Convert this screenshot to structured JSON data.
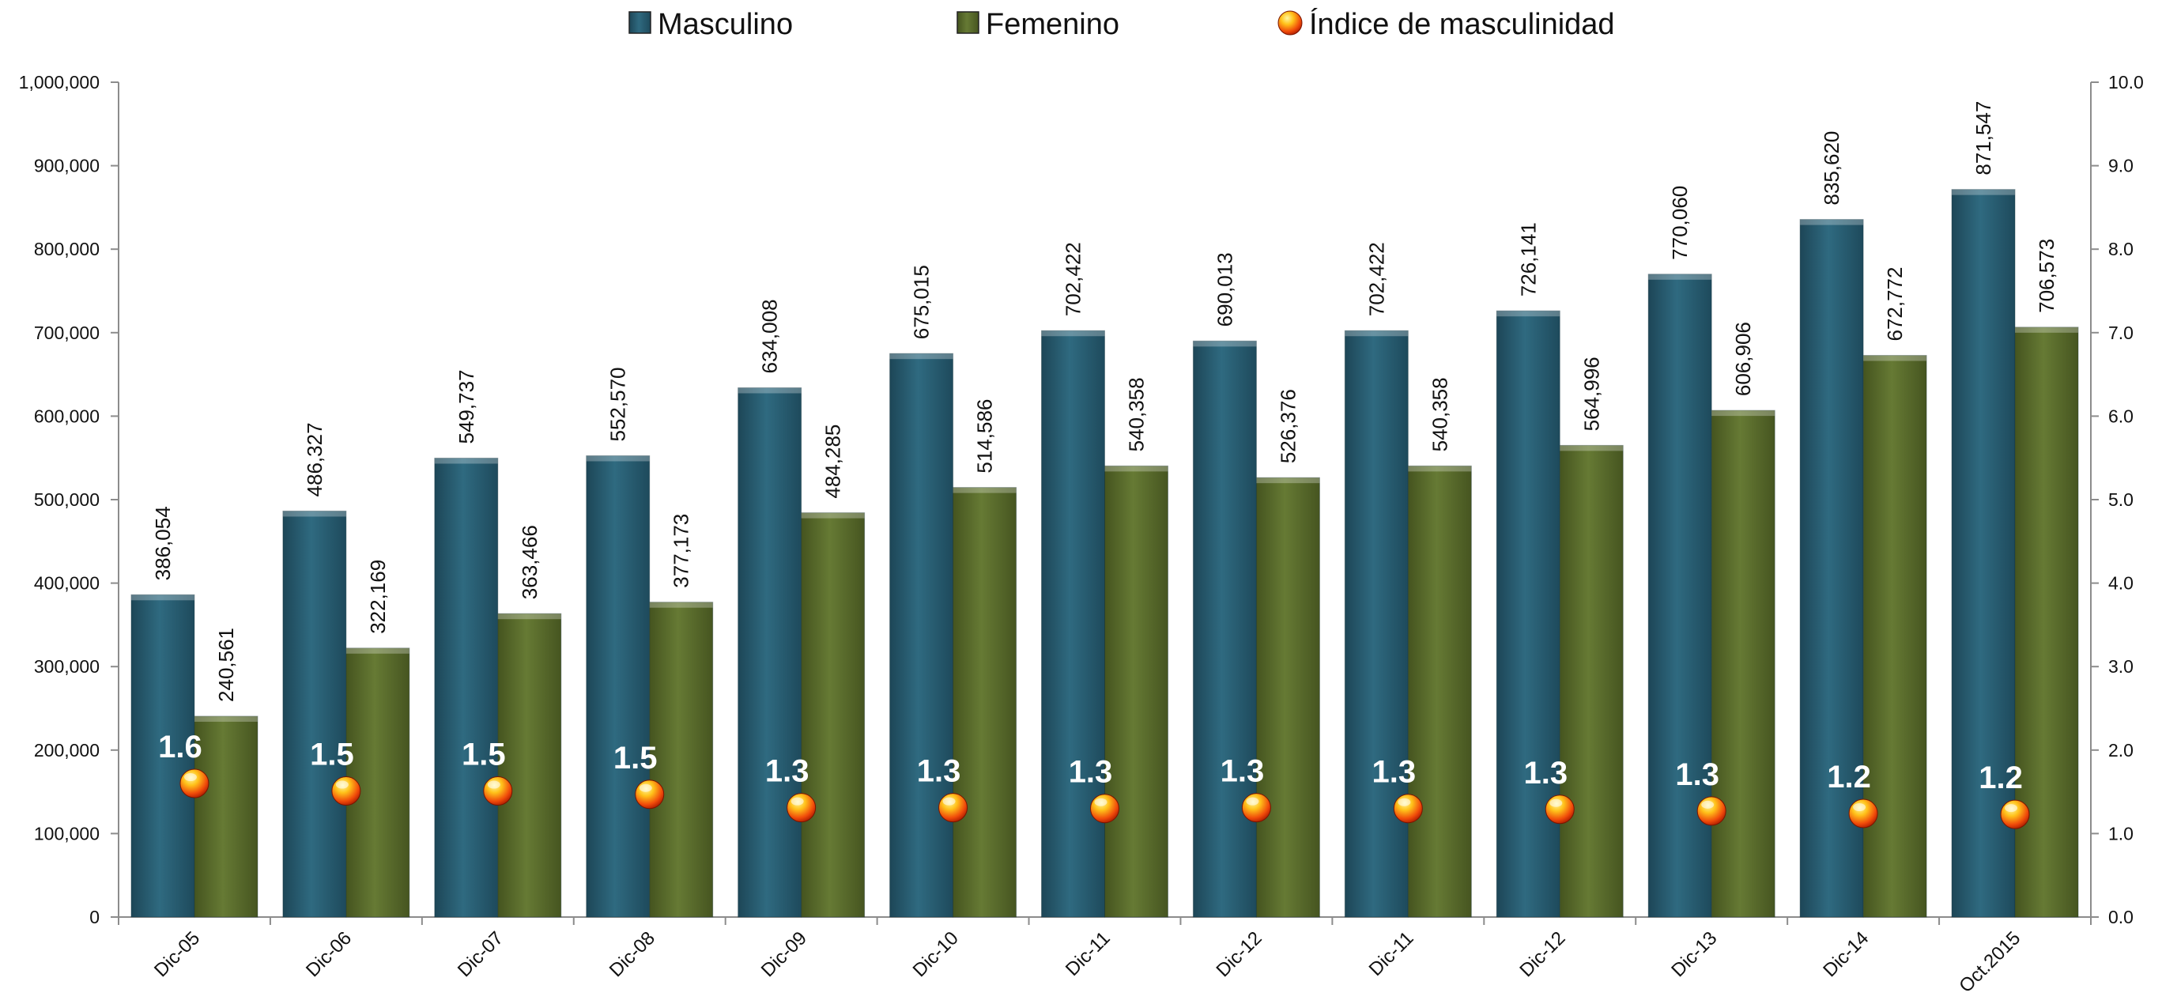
{
  "chart_data": {
    "type": "bar",
    "categories": [
      "Dic-05",
      "Dic-06",
      "Dic-07",
      "Dic-08",
      "Dic-09",
      "Dic-10",
      "Dic-11",
      "Dic-12",
      "Dic-11",
      "Dic-12",
      "Dic-13",
      "Dic-14",
      "Oct.2015"
    ],
    "series": [
      {
        "name": "Masculino",
        "color": "#2a5e72",
        "values": [
          386054,
          486327,
          549737,
          552570,
          634008,
          675015,
          702422,
          690013,
          702422,
          726141,
          770060,
          835620,
          871547
        ],
        "labels": [
          "386,054",
          "486,327",
          "549,737",
          "552,570",
          "634,008",
          "675,015",
          "702,422",
          "690,013",
          "702,422",
          "726,141",
          "770,060",
          "835,620",
          "871,547"
        ]
      },
      {
        "name": "Femenino",
        "color": "#5a6b2c",
        "values": [
          240561,
          322169,
          363466,
          377173,
          484285,
          514586,
          540358,
          526376,
          540358,
          564996,
          606906,
          672772,
          706573
        ],
        "labels": [
          "240,561",
          "322,169",
          "363,466",
          "377,173",
          "484,285",
          "514,586",
          "540,358",
          "526,376",
          "540,358",
          "564,996",
          "606,906",
          "672,772",
          "706,573"
        ]
      },
      {
        "name": "Índice de masculinidad",
        "axis": "right",
        "marker": "sphere",
        "values": [
          1.6,
          1.5,
          1.5,
          1.5,
          1.3,
          1.3,
          1.3,
          1.3,
          1.3,
          1.3,
          1.3,
          1.2,
          1.2
        ],
        "plot_values": [
          1.6,
          1.51,
          1.51,
          1.47,
          1.31,
          1.31,
          1.3,
          1.31,
          1.3,
          1.29,
          1.27,
          1.24,
          1.23
        ],
        "labels": [
          "1.6",
          "1.5",
          "1.5",
          "1.5",
          "1.3",
          "1.3",
          "1.3",
          "1.3",
          "1.3",
          "1.3",
          "1.3",
          "1.2",
          "1.2"
        ]
      }
    ],
    "ylim": [
      0,
      1000000
    ],
    "yticks": [
      "0",
      "100,000",
      "200,000",
      "300,000",
      "400,000",
      "500,000",
      "600,000",
      "700,000",
      "800,000",
      "900,000",
      "1,000,000"
    ],
    "y2lim": [
      0,
      10
    ],
    "y2ticks": [
      "0.0",
      "1.0",
      "2.0",
      "3.0",
      "4.0",
      "5.0",
      "6.0",
      "7.0",
      "8.0",
      "9.0",
      "10.0"
    ],
    "legend_position": "top",
    "grid": false
  }
}
